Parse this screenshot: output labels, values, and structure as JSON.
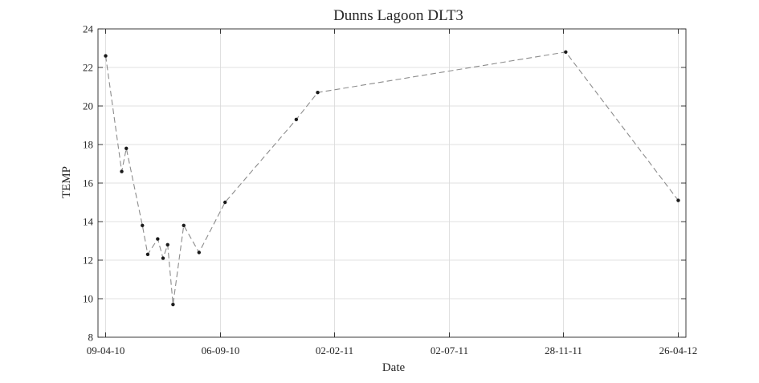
{
  "chart_data": {
    "type": "line",
    "title": "Dunns Lagoon DLT3",
    "xlabel": "Date",
    "ylabel": "TEMP",
    "x_axis_type": "date",
    "xlim": [
      "2010-03-30",
      "2012-05-06"
    ],
    "ylim": [
      8,
      24
    ],
    "x_ticks": [
      {
        "date": "2010-04-09",
        "label": "09-04-10"
      },
      {
        "date": "2010-09-06",
        "label": "06-09-10"
      },
      {
        "date": "2011-02-02",
        "label": "02-02-11"
      },
      {
        "date": "2011-07-02",
        "label": "02-07-11"
      },
      {
        "date": "2011-11-28",
        "label": "28-11-11"
      },
      {
        "date": "2012-04-26",
        "label": "26-04-12"
      }
    ],
    "y_ticks": [
      8,
      10,
      12,
      14,
      16,
      18,
      20,
      22,
      24
    ],
    "grid": true,
    "line_style": "dashed",
    "line_color": "#8c8c8c",
    "marker_color": "#1a1a1a",
    "series": [
      {
        "points": [
          {
            "x": "2010-04-09",
            "y": 22.6
          },
          {
            "x": "2010-04-30",
            "y": 16.6
          },
          {
            "x": "2010-05-06",
            "y": 17.8
          },
          {
            "x": "2010-05-27",
            "y": 13.8
          },
          {
            "x": "2010-06-03",
            "y": 12.3
          },
          {
            "x": "2010-06-16",
            "y": 13.1
          },
          {
            "x": "2010-06-23",
            "y": 12.1
          },
          {
            "x": "2010-06-29",
            "y": 12.8
          },
          {
            "x": "2010-07-06",
            "y": 9.7
          },
          {
            "x": "2010-07-20",
            "y": 13.8
          },
          {
            "x": "2010-08-09",
            "y": 12.4
          },
          {
            "x": "2010-09-12",
            "y": 15.0
          },
          {
            "x": "2010-12-14",
            "y": 19.3
          },
          {
            "x": "2011-01-11",
            "y": 20.7
          },
          {
            "x": "2011-12-01",
            "y": 22.8
          },
          {
            "x": "2012-04-26",
            "y": 15.1
          }
        ]
      }
    ]
  }
}
